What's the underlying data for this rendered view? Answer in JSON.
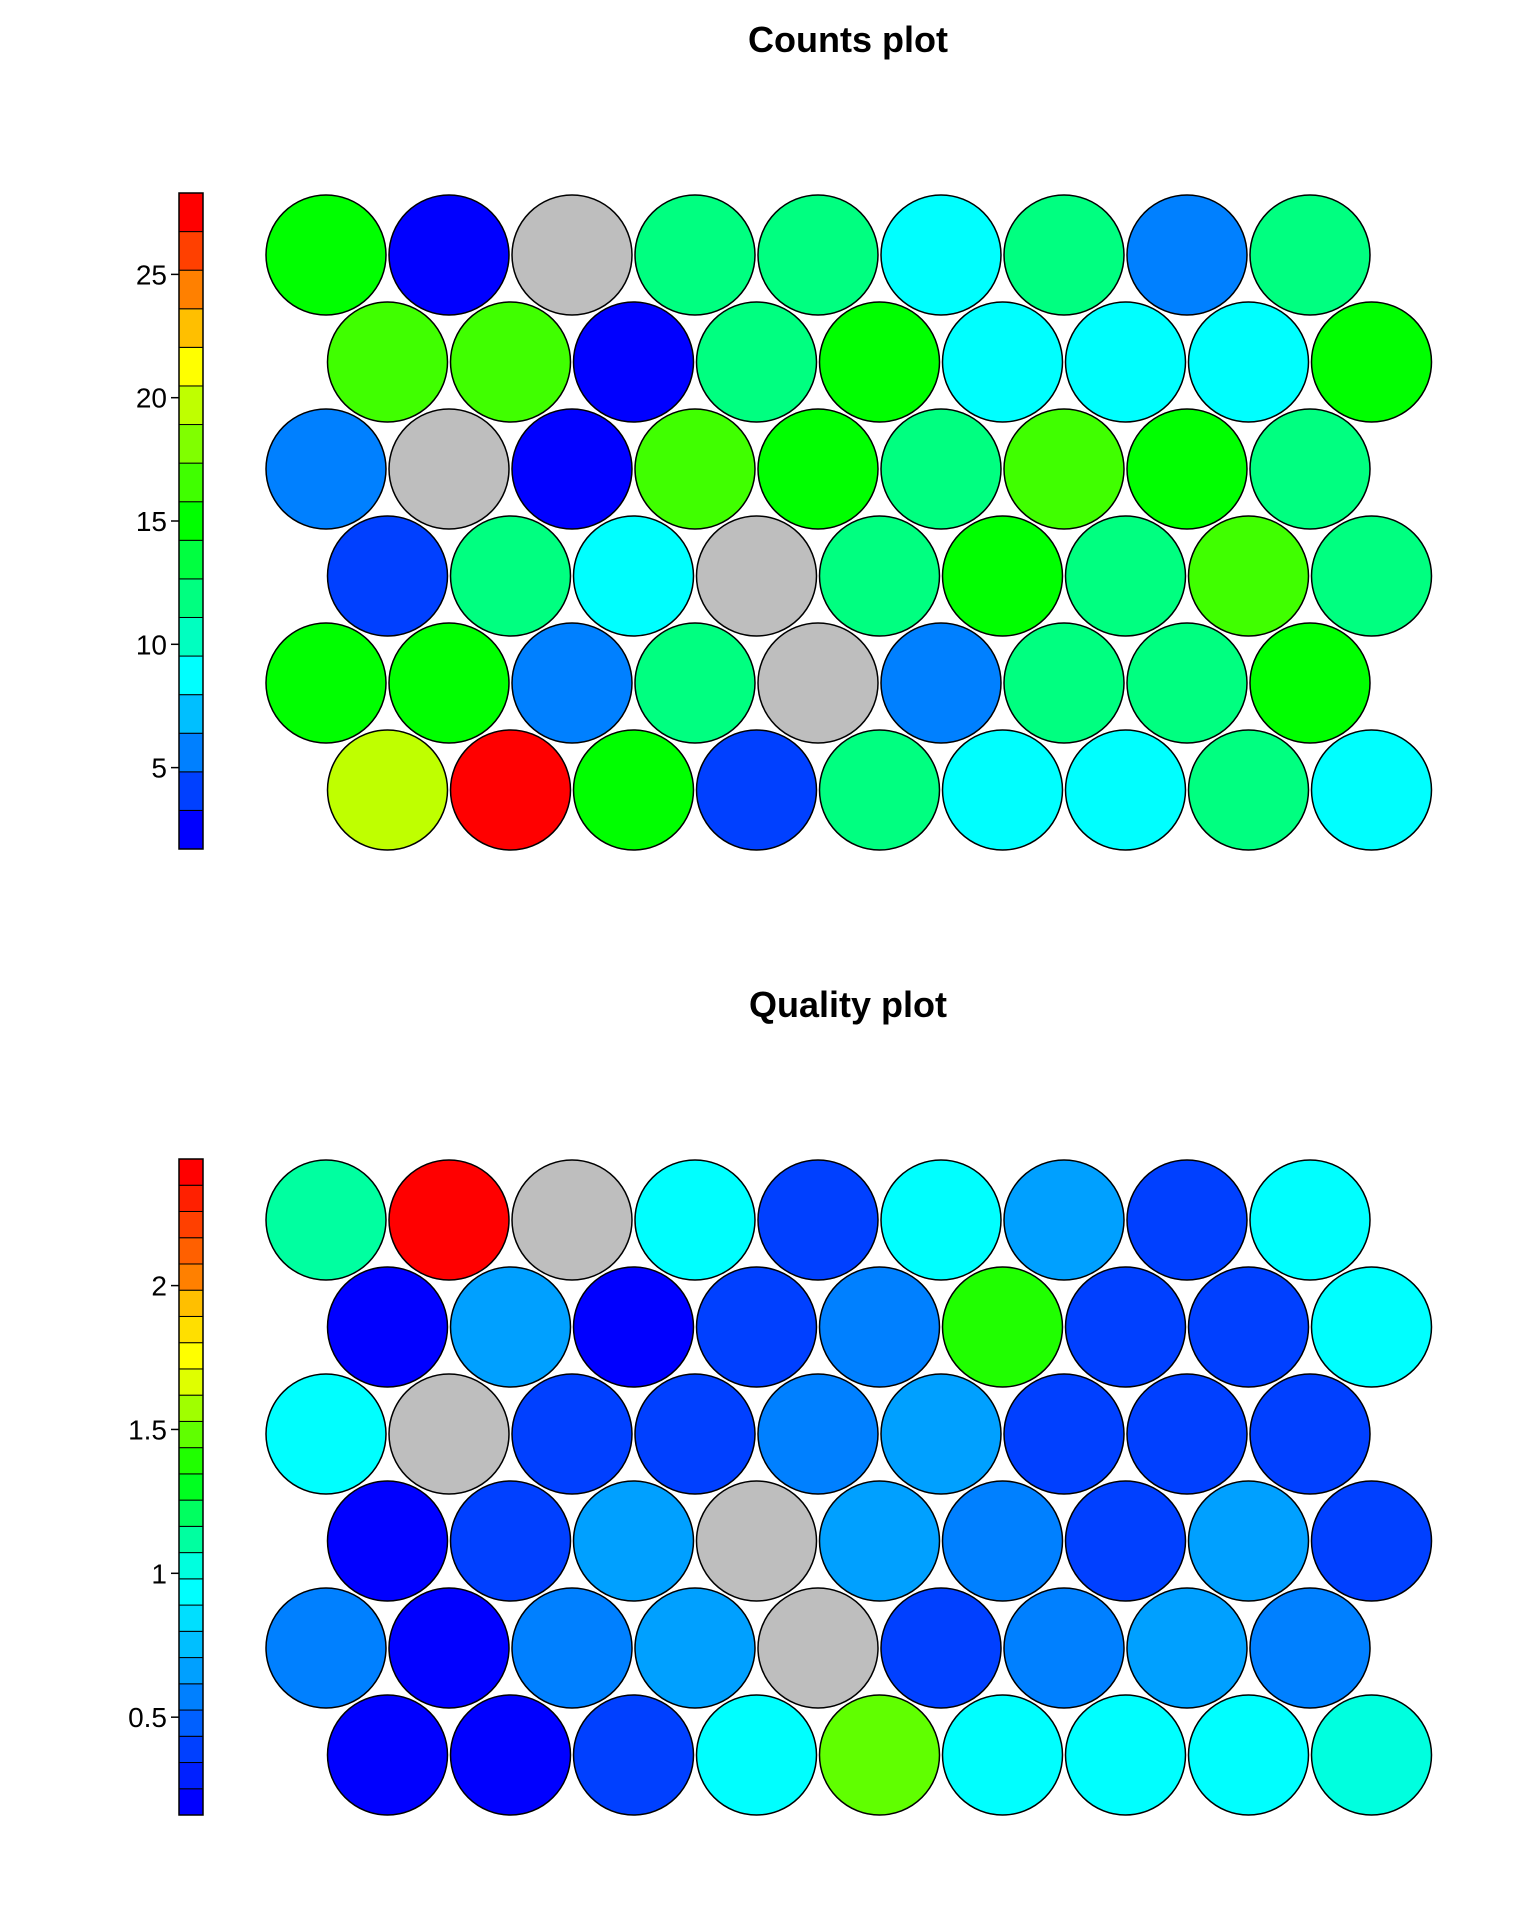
{
  "chart_data": [
    {
      "type": "heatmap",
      "subtype": "hexagonal-som-circles",
      "title": "Counts plot",
      "grid": "off",
      "legend_position": "left",
      "colorbar": {
        "range": [
          1.7,
          28.3
        ],
        "ticks": [
          5,
          10,
          15,
          20,
          25
        ],
        "colors": [
          "#0000ff",
          "#0040ff",
          "#0080ff",
          "#00bfff",
          "#00ffff",
          "#00ffc0",
          "#00ff80",
          "#00ff40",
          "#00ff00",
          "#40ff00",
          "#80ff00",
          "#bfff00",
          "#ffff00",
          "#ffbf00",
          "#ff8000",
          "#ff4000",
          "#ff0000"
        ]
      },
      "missing_color": "#bebebe",
      "rows": [
        [
          15.0,
          1.9,
          null,
          11.5,
          11.5,
          9.0,
          12.6,
          6.0,
          12.6
        ],
        [
          16.0,
          16.0,
          1.9,
          11.5,
          15.0,
          9.0,
          9.0,
          9.0,
          15.0
        ],
        [
          5.8,
          null,
          1.9,
          17.2,
          14.8,
          11.5,
          15.8,
          14.8,
          12.6
        ],
        [
          4.2,
          11.5,
          9.0,
          null,
          12.6,
          14.6,
          11.5,
          16.0,
          12.6
        ],
        [
          14.6,
          15.0,
          6.0,
          12.6,
          null,
          6.0,
          12.6,
          12.6,
          15.0
        ],
        [
          19.5,
          28.0,
          14.6,
          4.2,
          11.5,
          9.0,
          9.0,
          11.5,
          9.0
        ]
      ]
    },
    {
      "type": "heatmap",
      "subtype": "hexagonal-som-circles",
      "title": "Quality plot",
      "grid": "off",
      "legend_position": "left",
      "colorbar": {
        "range": [
          0.16,
          2.44
        ],
        "ticks": [
          0.5,
          1,
          1.5,
          2
        ],
        "ticklabels": [
          "0.5",
          "1",
          "1.5",
          "2"
        ],
        "colors": [
          "#0000ff",
          "#0020ff",
          "#0040ff",
          "#0060ff",
          "#0080ff",
          "#00a0ff",
          "#00bfff",
          "#00dfff",
          "#00ffff",
          "#00ffdf",
          "#00ffa0",
          "#00ff60",
          "#00ff20",
          "#20ff00",
          "#60ff00",
          "#a0ff00",
          "#dfff00",
          "#ffff00",
          "#ffdf00",
          "#ffbf00",
          "#ff8000",
          "#ff6000",
          "#ff4000",
          "#ff2000",
          "#ff0000"
        ]
      },
      "missing_color": "#bebebe",
      "rows": [
        [
          1.13,
          2.43,
          null,
          0.9,
          0.4,
          0.9,
          0.7,
          0.35,
          0.9
        ],
        [
          0.2,
          0.7,
          0.2,
          0.4,
          0.55,
          1.35,
          0.4,
          0.35,
          0.9
        ],
        [
          0.9,
          null,
          0.4,
          0.4,
          0.55,
          0.7,
          0.35,
          0.35,
          0.35
        ],
        [
          0.22,
          0.4,
          0.7,
          null,
          0.7,
          0.55,
          0.35,
          0.7,
          0.4
        ],
        [
          0.55,
          0.2,
          0.55,
          0.7,
          null,
          0.35,
          0.55,
          0.7,
          0.55
        ],
        [
          0.2,
          0.2,
          0.4,
          0.9,
          1.5,
          0.9,
          0.9,
          0.9,
          1.02
        ]
      ]
    }
  ]
}
